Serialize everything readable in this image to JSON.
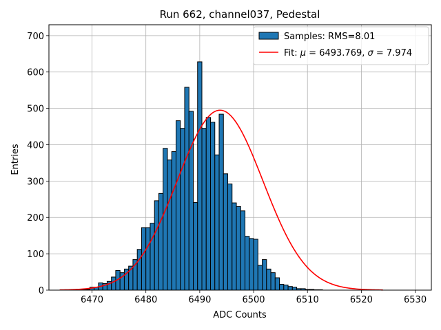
{
  "chart_data": {
    "type": "bar",
    "title": "Run 662, channel037, Pedestal",
    "xlabel": "ADC Counts",
    "ylabel": "Entries",
    "xlim": [
      6462,
      6533
    ],
    "ylim": [
      0,
      730
    ],
    "xticks": [
      6470,
      6480,
      6490,
      6500,
      6510,
      6520,
      6530
    ],
    "yticks": [
      0,
      100,
      200,
      300,
      400,
      500,
      600,
      700
    ],
    "grid": true,
    "legend_position": "top-right",
    "histogram": {
      "name": "Samples: RMS=8.01",
      "bin_width": 0.8,
      "bin_start": 6464.0,
      "counts": [
        0,
        0,
        0,
        0,
        1,
        1,
        2,
        8,
        8,
        20,
        18,
        24,
        36,
        54,
        48,
        58,
        66,
        84,
        112,
        172,
        172,
        184,
        246,
        266,
        390,
        358,
        381,
        466,
        445,
        558,
        492,
        241,
        628,
        445,
        475,
        462,
        372,
        484,
        320,
        292,
        240,
        230,
        218,
        148,
        142,
        140,
        68,
        84,
        58,
        48,
        34,
        16,
        14,
        10,
        8,
        4,
        4,
        2,
        2,
        1,
        1,
        0,
        0,
        0,
        0,
        0,
        0,
        0,
        0,
        0,
        0,
        0,
        0,
        0,
        0
      ]
    },
    "fit": {
      "name": "Fit: μ = 6493.769, σ = 7.974",
      "label_prefix": "Fit: ",
      "label_mu": "μ",
      "label_mid": " = 6493.769, ",
      "label_sigma": "σ",
      "label_suffix": " = 7.974",
      "mu": 6493.769,
      "sigma": 7.974,
      "amplitude": 495,
      "x_range": [
        6464,
        6524
      ]
    },
    "colors": {
      "bar_fill": "#1f77b4",
      "bar_edge": "#000000",
      "fit_line": "#ff0000",
      "grid": "#b0b0b0"
    }
  }
}
